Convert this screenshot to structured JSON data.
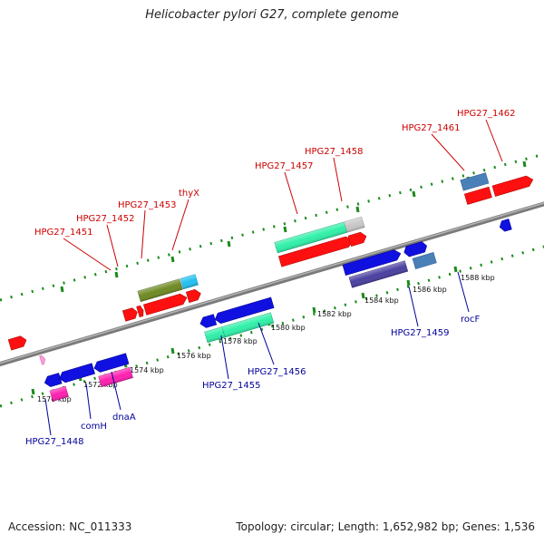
{
  "title": "Helicobacter pylori G27, complete genome",
  "footer": {
    "accession": "Accession: NC_011333",
    "topology": "Topology: circular; Length: 1,652,982 bp; Genes: 1,536"
  },
  "colors": {
    "label_top": "#cc0000",
    "label_bottom": "#000099",
    "tick": "#1a8a1a",
    "backbone": "#8c8c8c"
  },
  "ruler": [
    {
      "label": "1570 kbp"
    },
    {
      "label": "1572 kbp"
    },
    {
      "label": "1574 kbp"
    },
    {
      "label": "1576 kbp"
    },
    {
      "label": "1578 kbp"
    },
    {
      "label": "1580 kbp"
    },
    {
      "label": "1582 kbp"
    },
    {
      "label": "1584 kbp"
    },
    {
      "label": "1586 kbp"
    },
    {
      "label": "1588 kbp"
    }
  ],
  "top_labels": [
    {
      "text": "HPG27_1451"
    },
    {
      "text": "HPG27_1452"
    },
    {
      "text": "HPG27_1453"
    },
    {
      "text": "thyX"
    },
    {
      "text": "HPG27_1457"
    },
    {
      "text": "HPG27_1458"
    },
    {
      "text": "HPG27_1461"
    },
    {
      "text": "HPG27_1462"
    }
  ],
  "bottom_labels": [
    {
      "text": "HPG27_1448"
    },
    {
      "text": "comH"
    },
    {
      "text": "dnaA"
    },
    {
      "text": "HPG27_1455"
    },
    {
      "text": "HPG27_1456"
    },
    {
      "text": "HPG27_1459"
    },
    {
      "text": "rocF"
    }
  ]
}
